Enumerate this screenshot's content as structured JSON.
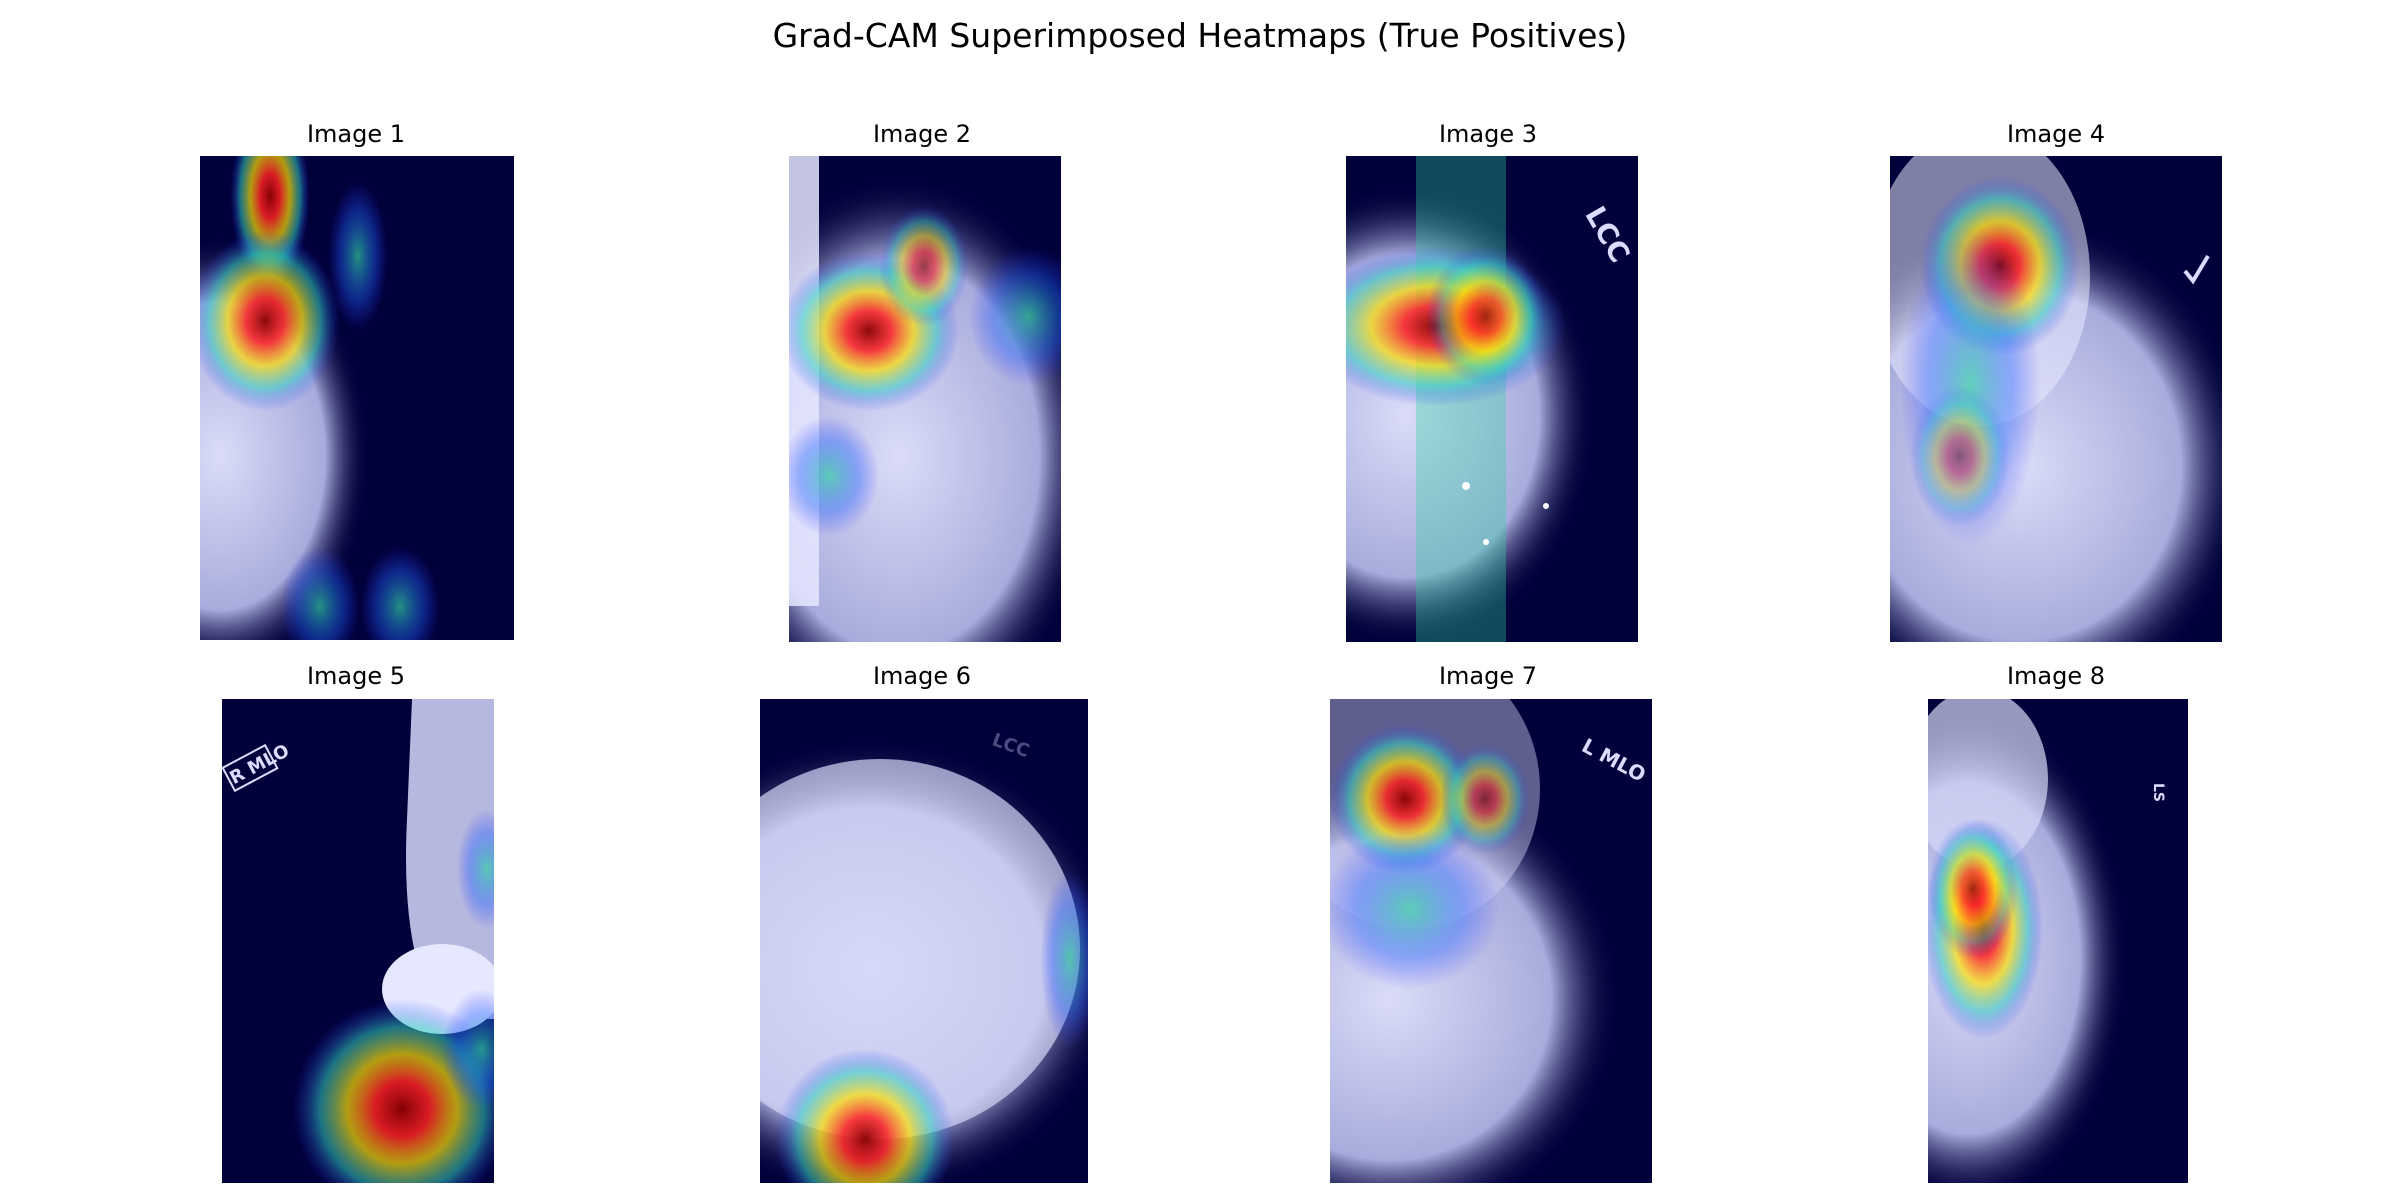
{
  "figure": {
    "title": "Grad-CAM Superimposed Heatmaps (True Positives)"
  },
  "panels": [
    {
      "title": "Image 1",
      "marker": ""
    },
    {
      "title": "Image 2",
      "marker": ""
    },
    {
      "title": "Image 3",
      "marker": "LCC"
    },
    {
      "title": "Image 4",
      "marker": ""
    },
    {
      "title": "Image 5",
      "marker": "R MLO"
    },
    {
      "title": "Image 6",
      "marker": "LCC"
    },
    {
      "title": "Image 7",
      "marker": "L MLO"
    },
    {
      "title": "Image 8",
      "marker": "LS"
    }
  ],
  "colors": {
    "background": "#00003a",
    "tissue": "#c9ccf2",
    "hot": "#8a0000",
    "warm": "#ff2020",
    "mid": "#ffe000",
    "cool": "#30d0c0",
    "low": "#3030ff"
  }
}
